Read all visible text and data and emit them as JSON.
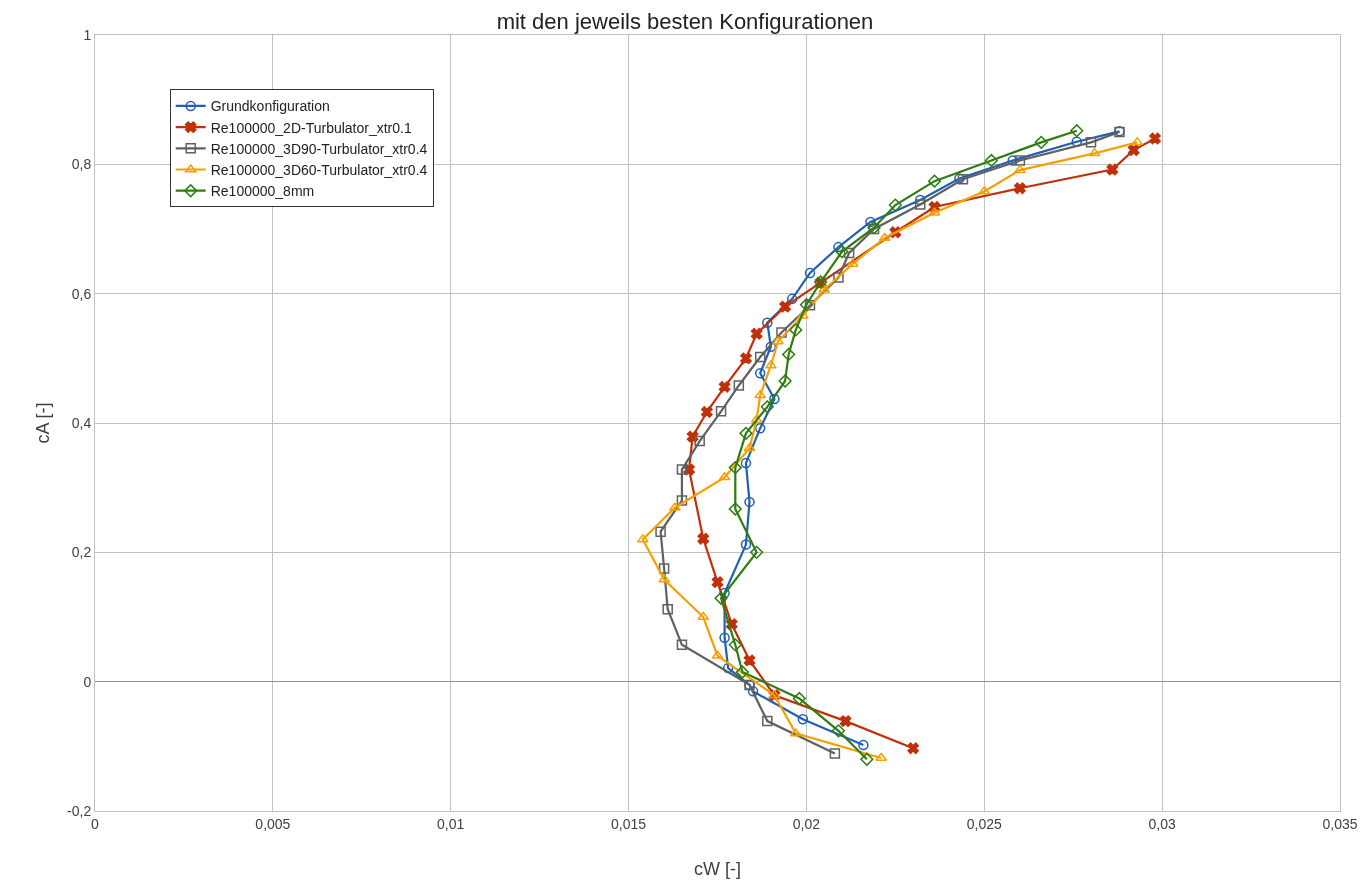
{
  "chart_data": {
    "type": "line",
    "title": "mit den jeweils besten Konfigurationen",
    "xlabel": "cW [-]",
    "ylabel": "cA [-]",
    "xlim": [
      0,
      0.035
    ],
    "xticks": [
      0,
      {
        "value": 0.005,
        "label": "0,005"
      },
      {
        "value": 0.01,
        "label": "0,01"
      },
      {
        "value": 0.015,
        "label": "0,015"
      },
      {
        "value": 0.02,
        "label": "0,02"
      },
      {
        "value": 0.025,
        "label": "0,025"
      },
      {
        "value": 0.03,
        "label": "0,03"
      },
      {
        "value": 0.035,
        "label": "0,035"
      }
    ],
    "ylim": [
      -0.2,
      1
    ],
    "yticks": [
      {
        "value": -0.2,
        "label": "-0,2"
      },
      0,
      {
        "value": 0.2,
        "label": "0,2"
      },
      {
        "value": 0.4,
        "label": "0,4"
      },
      {
        "value": 0.6,
        "label": "0,6"
      },
      {
        "value": 0.8,
        "label": "0,8"
      },
      1
    ],
    "grid": true,
    "legend": "top left",
    "line_style": "solid",
    "series": [
      {
        "name": "Grundkonfiguration",
        "color": "#2060b0",
        "marker": "circle",
        "x": [
          0.0216,
          0.0199,
          0.0185,
          0.0184,
          0.0178,
          0.0177,
          0.0177,
          0.0183,
          0.0184,
          0.0183,
          0.0187,
          0.0191,
          0.0187,
          0.019,
          0.0189,
          0.0196,
          0.0201,
          0.0209,
          0.0218,
          0.0232,
          0.0243,
          0.0258,
          0.0276,
          0.0288
        ],
        "values": [
          -0.098,
          -0.058,
          -0.015,
          -0.005,
          0.021,
          0.068,
          0.137,
          0.212,
          0.278,
          0.338,
          0.392,
          0.437,
          0.477,
          0.518,
          0.555,
          0.592,
          0.632,
          0.672,
          0.711,
          0.745,
          0.778,
          0.806,
          0.835,
          0.851
        ]
      },
      {
        "name": "Re100000_2D-Turbulator_xtr0.1",
        "color": "#c0300a",
        "marker": "cross",
        "x": [
          0.023,
          0.0211,
          0.0191,
          0.0184,
          0.0179,
          0.0175,
          0.0171,
          0.0167,
          0.0168,
          0.0172,
          0.0177,
          0.0183,
          0.0186,
          0.0194,
          0.0204,
          0.0225,
          0.0236,
          0.026,
          0.0286,
          0.0292,
          0.0298
        ],
        "values": [
          -0.103,
          -0.061,
          -0.021,
          0.033,
          0.089,
          0.154,
          0.221,
          0.328,
          0.379,
          0.417,
          0.456,
          0.5,
          0.538,
          0.58,
          0.617,
          0.695,
          0.734,
          0.763,
          0.792,
          0.822,
          0.84
        ]
      },
      {
        "name": "Re100000_3D90-Turbulator_xtr0.4",
        "color": "#606060",
        "marker": "square",
        "x": [
          0.0208,
          0.0189,
          0.0184,
          0.0165,
          0.0161,
          0.016,
          0.0159,
          0.0165,
          0.0165,
          0.017,
          0.0176,
          0.0181,
          0.0187,
          0.0193,
          0.0201,
          0.0209,
          0.0212,
          0.0219,
          0.0232,
          0.0244,
          0.026,
          0.028,
          0.0288
        ],
        "values": [
          -0.111,
          -0.061,
          -0.005,
          0.057,
          0.112,
          0.175,
          0.232,
          0.28,
          0.328,
          0.372,
          0.418,
          0.458,
          0.502,
          0.54,
          0.582,
          0.625,
          0.663,
          0.7,
          0.738,
          0.777,
          0.806,
          0.834,
          0.85
        ]
      },
      {
        "name": "Re100000_3D60-Turbulator_xtr0.4",
        "color": "#f5a000",
        "marker": "triangle",
        "x": [
          0.0221,
          0.0197,
          0.0191,
          0.0175,
          0.0171,
          0.016,
          0.0154,
          0.0163,
          0.0177,
          0.0184,
          0.0186,
          0.0187,
          0.019,
          0.0192,
          0.0199,
          0.0205,
          0.0213,
          0.0222,
          0.0236,
          0.025,
          0.026,
          0.0281,
          0.0293
        ],
        "values": [
          -0.118,
          -0.08,
          -0.021,
          0.04,
          0.1,
          0.158,
          0.22,
          0.269,
          0.316,
          0.361,
          0.405,
          0.443,
          0.489,
          0.526,
          0.566,
          0.606,
          0.646,
          0.686,
          0.725,
          0.758,
          0.791,
          0.817,
          0.834
        ]
      },
      {
        "name": "Re100000_8mm",
        "color": "#2e7d10",
        "marker": "diamond",
        "x": [
          0.0217,
          0.0209,
          0.0198,
          0.0182,
          0.018,
          0.0176,
          0.0186,
          0.018,
          0.018,
          0.0183,
          0.0189,
          0.0194,
          0.0195,
          0.0197,
          0.02,
          0.0204,
          0.021,
          0.0219,
          0.0225,
          0.0236,
          0.0252,
          0.0266,
          0.0276
        ],
        "values": [
          -0.12,
          -0.076,
          -0.026,
          0.015,
          0.057,
          0.129,
          0.2,
          0.267,
          0.331,
          0.384,
          0.425,
          0.465,
          0.506,
          0.544,
          0.583,
          0.618,
          0.665,
          0.702,
          0.737,
          0.774,
          0.806,
          0.834,
          0.852
        ]
      }
    ]
  }
}
